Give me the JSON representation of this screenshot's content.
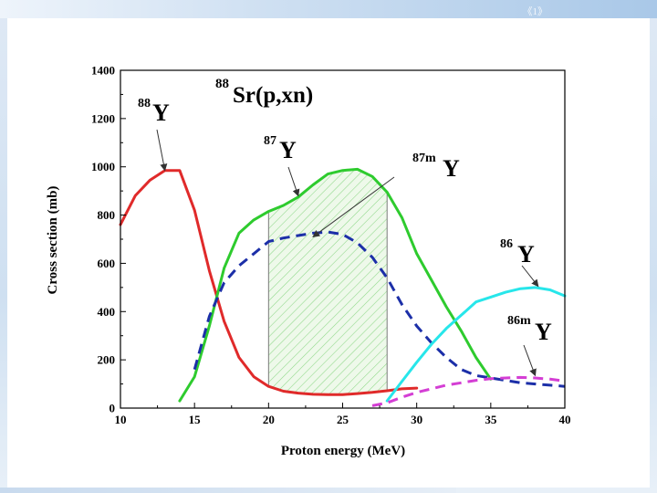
{
  "slide": {
    "page_mark": "《1》"
  },
  "chart_data": {
    "type": "line",
    "title": "Sr(p,xn)",
    "title_superscript": "88",
    "xlabel": "Proton energy (MeV)",
    "ylabel": "Cross section (mb)",
    "xlim": [
      10,
      40
    ],
    "ylim": [
      0,
      1400
    ],
    "xticks": [
      10,
      15,
      20,
      25,
      30,
      35,
      40
    ],
    "yticks": [
      0,
      200,
      400,
      600,
      800,
      1000,
      1200,
      1400
    ],
    "hatched_range": [
      20,
      28
    ],
    "series": [
      {
        "name": "88Y",
        "color": "#e02a2a",
        "dash": "solid",
        "x": [
          10,
          11,
          12,
          13,
          14,
          15,
          16,
          17,
          18,
          19,
          20,
          21,
          22,
          23,
          24,
          25,
          26,
          27,
          28,
          29,
          30
        ],
        "y": [
          760,
          880,
          945,
          985,
          985,
          820,
          570,
          360,
          210,
          130,
          90,
          70,
          62,
          57,
          56,
          56,
          60,
          65,
          72,
          80,
          83
        ]
      },
      {
        "name": "87Y",
        "color": "#2ecb2e",
        "dash": "solid",
        "x": [
          14,
          15,
          16,
          17,
          18,
          19,
          20,
          21,
          22,
          23,
          24,
          25,
          26,
          27,
          28,
          29,
          30,
          31,
          32,
          33,
          34,
          35
        ],
        "y": [
          30,
          130,
          340,
          580,
          725,
          780,
          815,
          840,
          875,
          925,
          970,
          985,
          990,
          960,
          895,
          790,
          640,
          530,
          420,
          320,
          210,
          120
        ]
      },
      {
        "name": "87mY",
        "color": "#1c2fa8",
        "dash": "dashed",
        "x": [
          15,
          16,
          17,
          18,
          19,
          20,
          21,
          22,
          23,
          24,
          25,
          26,
          27,
          28,
          29,
          30,
          31,
          32,
          33,
          34,
          35,
          36,
          37,
          38,
          39,
          40
        ],
        "y": [
          160,
          380,
          520,
          590,
          640,
          690,
          705,
          715,
          725,
          730,
          720,
          685,
          625,
          540,
          430,
          340,
          270,
          210,
          160,
          135,
          125,
          115,
          105,
          100,
          95,
          90
        ]
      },
      {
        "name": "86Y",
        "color": "#27e6ea",
        "dash": "solid",
        "x": [
          28,
          29,
          30,
          31,
          32,
          33,
          34,
          35,
          36,
          37,
          38,
          39,
          40
        ],
        "y": [
          30,
          110,
          190,
          265,
          330,
          385,
          440,
          460,
          480,
          495,
          500,
          490,
          465
        ]
      },
      {
        "name": "86mY",
        "color": "#d43ed4",
        "dash": "dashed",
        "x": [
          27,
          28,
          29,
          30,
          31,
          32,
          33,
          34,
          35,
          36,
          37,
          38,
          39,
          40
        ],
        "y": [
          10,
          22,
          45,
          65,
          80,
          95,
          105,
          115,
          122,
          125,
          127,
          125,
          120,
          112
        ]
      }
    ],
    "annotations": [
      {
        "text": "Y",
        "superscript": "88",
        "series": "88Y",
        "arrow_to": [
          13,
          985
        ]
      },
      {
        "text": "Y",
        "superscript": "87",
        "series": "87Y",
        "arrow_to": [
          22,
          880
        ]
      },
      {
        "text": "Y",
        "superscript": "87m",
        "series": "87mY",
        "arrow_to": [
          23,
          710
        ]
      },
      {
        "text": "Y",
        "superscript": "86",
        "series": "86Y",
        "arrow_to": [
          38.2,
          505
        ]
      },
      {
        "text": "Y",
        "superscript": "86m",
        "series": "86mY",
        "arrow_to": [
          38,
          135
        ]
      }
    ]
  }
}
